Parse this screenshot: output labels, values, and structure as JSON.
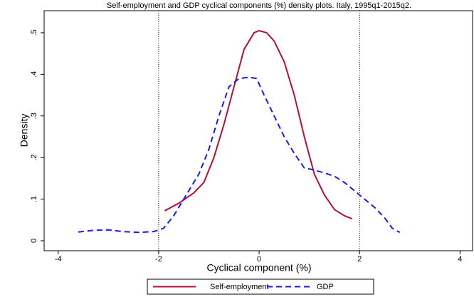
{
  "chart_data": {
    "type": "line",
    "title": "Self-employment and GDP cyclical components (%) density plots. Italy, 1995q1-2015q2.",
    "x_label": "Cyclical component (%)",
    "y_label": "Density",
    "xlim": [
      -4.28,
      4.25
    ],
    "ylim": [
      -0.024,
      0.553
    ],
    "xticks": [
      -4,
      -2,
      0,
      2,
      4
    ],
    "yticks": [
      0,
      {
        "value": 0.1,
        "label": ".1"
      },
      {
        "value": 0.2,
        "label": ".2"
      },
      {
        "value": 0.3,
        "label": ".3"
      },
      {
        "value": 0.4,
        "label": ".4"
      },
      {
        "value": 0.5,
        "label": ".5"
      }
    ],
    "vlines": [
      -2,
      2
    ],
    "series": [
      {
        "name": "Self-employment",
        "color": "#b0103a",
        "style": "solid",
        "x": [
          -1.88,
          -1.6,
          -1.3,
          -1.1,
          -0.9,
          -0.7,
          -0.5,
          -0.3,
          -0.1,
          0,
          0.15,
          0.3,
          0.5,
          0.7,
          0.9,
          1.1,
          1.3,
          1.5,
          1.7,
          1.85
        ],
        "values": [
          0.072,
          0.09,
          0.115,
          0.14,
          0.2,
          0.28,
          0.37,
          0.46,
          0.5,
          0.505,
          0.5,
          0.48,
          0.43,
          0.35,
          0.25,
          0.16,
          0.11,
          0.075,
          0.06,
          0.053
        ]
      },
      {
        "name": "GDP",
        "color": "#1a1ae6",
        "style": "dashed",
        "x": [
          -3.6,
          -3.3,
          -3.0,
          -2.7,
          -2.4,
          -2.1,
          -1.9,
          -1.7,
          -1.5,
          -1.2,
          -1.0,
          -0.8,
          -0.6,
          -0.4,
          -0.2,
          -0.05,
          0.1,
          0.3,
          0.5,
          0.7,
          0.9,
          1.1,
          1.3,
          1.5,
          1.7,
          1.9,
          2.1,
          2.3,
          2.5,
          2.65,
          2.8
        ],
        "values": [
          0.021,
          0.025,
          0.026,
          0.022,
          0.02,
          0.022,
          0.03,
          0.06,
          0.1,
          0.16,
          0.22,
          0.3,
          0.37,
          0.39,
          0.393,
          0.39,
          0.35,
          0.3,
          0.25,
          0.21,
          0.175,
          0.17,
          0.163,
          0.155,
          0.14,
          0.12,
          0.1,
          0.08,
          0.055,
          0.03,
          0.02
        ]
      }
    ]
  }
}
